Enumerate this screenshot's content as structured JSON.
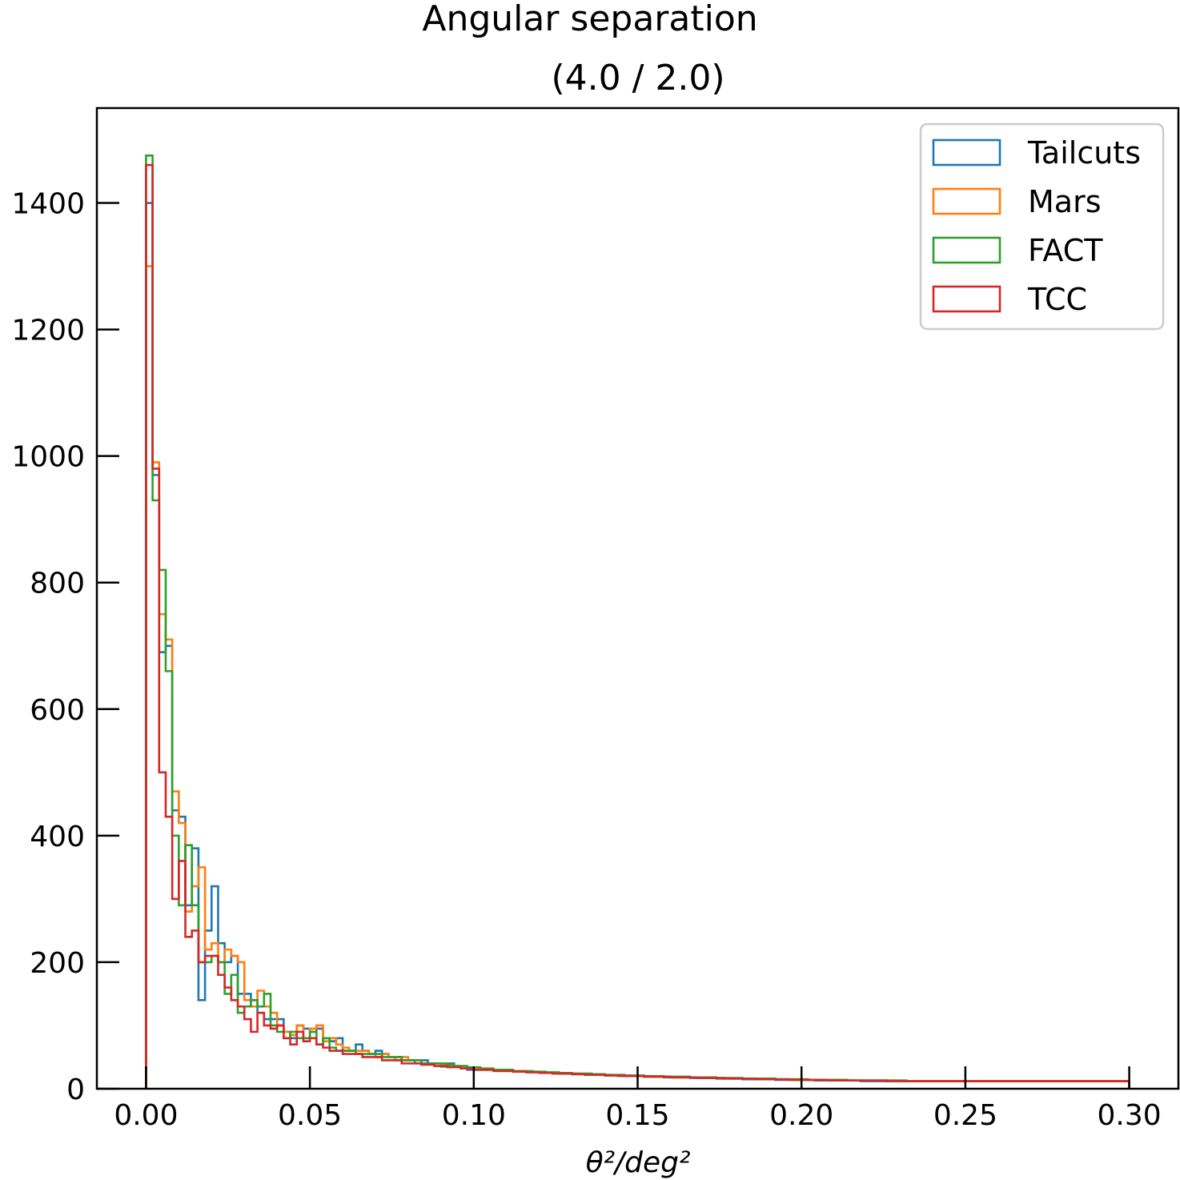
{
  "chart_data": {
    "type": "histogram",
    "title": "Angular separation",
    "subtitle": "(4.0 / 2.0)",
    "xlabel": "θ²/deg²",
    "ylabel": "",
    "xlim": [
      -0.015,
      0.315
    ],
    "ylim": [
      0,
      1550
    ],
    "xticks": [
      "0.00",
      "0.05",
      "0.10",
      "0.15",
      "0.20",
      "0.25",
      "0.30"
    ],
    "yticks": [
      "0",
      "200",
      "400",
      "600",
      "800",
      "1000",
      "1200",
      "1400"
    ],
    "grid": false,
    "legend_position": "top-right",
    "bin_start": 0.0,
    "bin_width": 0.002,
    "series": [
      {
        "name": "Tailcuts",
        "color": "#1f77b4",
        "values": [
          1400,
          970,
          690,
          700,
          440,
          430,
          290,
          380,
          140,
          250,
          320,
          230,
          200,
          210,
          150,
          150,
          140,
          120,
          110,
          110,
          110,
          90,
          80,
          100,
          95,
          90,
          95,
          80,
          75,
          80,
          60,
          60,
          70,
          60,
          55,
          60,
          55,
          50,
          50,
          45,
          45,
          40,
          45,
          40,
          40,
          35,
          40,
          35,
          35,
          30,
          30,
          30,
          30,
          30,
          30,
          28,
          28,
          28,
          26,
          26,
          25,
          25,
          25,
          24,
          24,
          23,
          23,
          22,
          22,
          22,
          21,
          21,
          20,
          20,
          20,
          20,
          19,
          19,
          19,
          18,
          18,
          18,
          18,
          17,
          17,
          17,
          17,
          16,
          16,
          16,
          16,
          15,
          15,
          15,
          15,
          15,
          14,
          14,
          14,
          14,
          14,
          14,
          13,
          13,
          13,
          13,
          13,
          13,
          13,
          12,
          12,
          12,
          12,
          12,
          12,
          12,
          12,
          12,
          12,
          12,
          12,
          12,
          12,
          12,
          12,
          12,
          12,
          12,
          12,
          12,
          12,
          12,
          12,
          12,
          12,
          12,
          12,
          12,
          12,
          12,
          12,
          12,
          12,
          12,
          12,
          12,
          12,
          12,
          12,
          12
        ]
      },
      {
        "name": "Mars",
        "color": "#ff7f0e",
        "values": [
          1300,
          990,
          750,
          710,
          470,
          420,
          280,
          320,
          350,
          220,
          230,
          200,
          220,
          210,
          200,
          140,
          130,
          155,
          130,
          120,
          100,
          90,
          85,
          100,
          80,
          95,
          100,
          75,
          80,
          70,
          65,
          60,
          60,
          60,
          55,
          50,
          55,
          50,
          45,
          50,
          45,
          45,
          40,
          40,
          40,
          38,
          36,
          36,
          34,
          32,
          32,
          30,
          30,
          30,
          28,
          28,
          28,
          27,
          27,
          26,
          26,
          25,
          25,
          24,
          24,
          24,
          23,
          23,
          22,
          22,
          22,
          21,
          21,
          21,
          20,
          20,
          20,
          19,
          19,
          19,
          19,
          18,
          18,
          18,
          18,
          17,
          17,
          17,
          17,
          16,
          16,
          16,
          16,
          16,
          15,
          15,
          15,
          15,
          15,
          15,
          14,
          14,
          14,
          14,
          14,
          14,
          13,
          13,
          13,
          13,
          13,
          13,
          13,
          13,
          13,
          12,
          12,
          12,
          12,
          12,
          12,
          12,
          12,
          12,
          12,
          12,
          12,
          12,
          12,
          12,
          12,
          12,
          12,
          12,
          12,
          12,
          12,
          12,
          12,
          12,
          12,
          12,
          12,
          12,
          12,
          12,
          12,
          12,
          12,
          12
        ]
      },
      {
        "name": "FACT",
        "color": "#2ca02c",
        "values": [
          1475,
          930,
          820,
          660,
          400,
          290,
          385,
          290,
          200,
          200,
          210,
          200,
          150,
          180,
          120,
          130,
          140,
          130,
          150,
          100,
          90,
          80,
          90,
          80,
          80,
          90,
          70,
          80,
          65,
          60,
          60,
          60,
          55,
          55,
          55,
          55,
          50,
          50,
          50,
          45,
          45,
          45,
          40,
          40,
          40,
          40,
          38,
          36,
          36,
          34,
          34,
          32,
          32,
          30,
          30,
          30,
          28,
          28,
          28,
          27,
          27,
          26,
          26,
          25,
          25,
          24,
          24,
          24,
          23,
          23,
          22,
          22,
          22,
          21,
          21,
          21,
          20,
          20,
          20,
          19,
          19,
          19,
          19,
          18,
          18,
          18,
          18,
          17,
          17,
          17,
          17,
          16,
          16,
          16,
          16,
          16,
          15,
          15,
          15,
          15,
          15,
          14,
          14,
          14,
          14,
          14,
          14,
          13,
          13,
          13,
          13,
          13,
          13,
          13,
          13,
          13,
          12,
          12,
          12,
          12,
          12,
          12,
          12,
          12,
          12,
          12,
          12,
          12,
          12,
          12,
          12,
          12,
          12,
          12,
          12,
          12,
          12,
          12,
          12,
          12,
          12,
          12,
          12,
          12,
          12,
          12,
          12,
          12,
          12,
          12
        ]
      },
      {
        "name": "TCC",
        "color": "#d62728",
        "values": [
          1460,
          980,
          500,
          430,
          300,
          360,
          240,
          250,
          200,
          210,
          210,
          180,
          160,
          140,
          130,
          110,
          90,
          120,
          100,
          95,
          100,
          80,
          70,
          90,
          75,
          80,
          70,
          65,
          60,
          60,
          55,
          55,
          55,
          50,
          50,
          50,
          45,
          45,
          45,
          40,
          40,
          40,
          38,
          38,
          36,
          36,
          34,
          34,
          32,
          32,
          30,
          30,
          30,
          28,
          28,
          28,
          27,
          27,
          26,
          26,
          25,
          25,
          24,
          24,
          24,
          23,
          23,
          22,
          22,
          22,
          21,
          21,
          21,
          20,
          20,
          20,
          19,
          19,
          19,
          19,
          18,
          18,
          18,
          18,
          17,
          17,
          17,
          17,
          16,
          16,
          16,
          16,
          16,
          15,
          15,
          15,
          15,
          15,
          14,
          14,
          14,
          14,
          14,
          14,
          13,
          13,
          13,
          13,
          13,
          13,
          13,
          13,
          13,
          12,
          12,
          12,
          12,
          12,
          12,
          12,
          12,
          12,
          12,
          12,
          12,
          12,
          12,
          12,
          12,
          12,
          12,
          12,
          12,
          12,
          12,
          12,
          12,
          12,
          12,
          12,
          12,
          12,
          12,
          12,
          12,
          12,
          12,
          12,
          12,
          12
        ]
      }
    ]
  }
}
